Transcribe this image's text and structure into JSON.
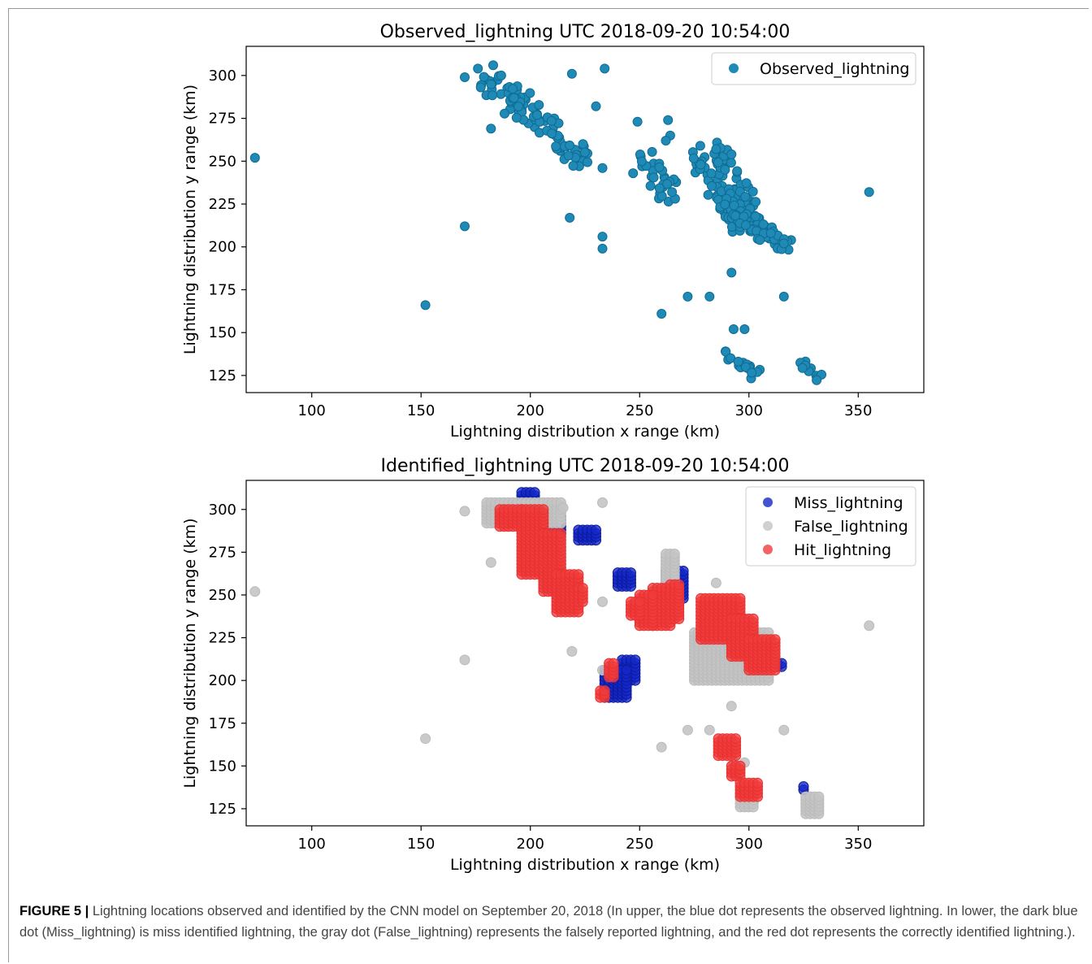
{
  "chart_data": [
    {
      "type": "scatter",
      "title": "Observed_lightning UTC 2018-09-20 10:54:00",
      "xlabel": "Lightning distribution x range (km)",
      "ylabel": "Lightning distribution y range (km)",
      "xlim": [
        70,
        380
      ],
      "ylim": [
        115,
        317
      ],
      "xticks": [
        100,
        150,
        200,
        250,
        300,
        350
      ],
      "yticks": [
        125,
        150,
        175,
        200,
        225,
        250,
        275,
        300
      ],
      "legend": "top-right",
      "series": [
        {
          "name": "Observed_lightning",
          "color": "#1f8ab5",
          "clusters": [
            {
              "x0": 180,
              "y0": 300,
              "x1": 225,
              "y1": 248,
              "w": 6,
              "n": 90
            },
            {
              "x0": 250,
              "y0": 255,
              "x1": 265,
              "y1": 230,
              "w": 5,
              "n": 30
            },
            {
              "x0": 280,
              "y0": 255,
              "x1": 300,
              "y1": 215,
              "w": 8,
              "n": 120
            },
            {
              "x0": 295,
              "y0": 218,
              "x1": 318,
              "y1": 200,
              "w": 4,
              "n": 50
            },
            {
              "x0": 292,
              "y0": 138,
              "x1": 303,
              "y1": 126,
              "w": 3,
              "n": 18
            },
            {
              "x0": 324,
              "y0": 133,
              "x1": 333,
              "y1": 122,
              "w": 2,
              "n": 12
            }
          ],
          "points": [
            [
              74,
              252
            ],
            [
              152,
              166
            ],
            [
              170,
              212
            ],
            [
              170,
              299
            ],
            [
              176,
              304
            ],
            [
              183,
              306
            ],
            [
              182,
              269
            ],
            [
              219,
              301
            ],
            [
              234,
              304
            ],
            [
              218,
              217
            ],
            [
              233,
              206
            ],
            [
              233,
              199
            ],
            [
              233,
              246
            ],
            [
              230,
              282
            ],
            [
              249,
              273
            ],
            [
              247,
              243
            ],
            [
              260,
              161
            ],
            [
              263,
              274
            ],
            [
              264,
              265
            ],
            [
              272,
              171
            ],
            [
              282,
              171
            ],
            [
              292,
              185
            ],
            [
              293,
              152
            ],
            [
              298,
              152
            ],
            [
              316,
              171
            ],
            [
              355,
              232
            ],
            [
              310,
              208
            ],
            [
              305,
              204
            ],
            [
              316,
              202
            ],
            [
              262,
              262
            ],
            [
              285,
              257
            ],
            [
              292,
              254
            ]
          ]
        }
      ]
    },
    {
      "type": "scatter",
      "title": "Identified_lightning UTC 2018-09-20 10:54:00",
      "xlabel": "Lightning distribution x range (km)",
      "ylabel": "Lightning distribution y range (km)",
      "xlim": [
        70,
        380
      ],
      "ylim": [
        115,
        317
      ],
      "xticks": [
        100,
        150,
        200,
        250,
        300,
        350
      ],
      "yticks": [
        125,
        150,
        175,
        200,
        225,
        250,
        275,
        300
      ],
      "legend": "top-right",
      "series": [
        {
          "name": "Miss_lightning",
          "color": "#1428c8",
          "grid_blocks": [
            [
              196,
              202,
              302,
              310
            ],
            [
              206,
              214,
              286,
              296
            ],
            [
              222,
              230,
              282,
              288
            ],
            [
              240,
              246,
              255,
              263
            ],
            [
              262,
              270,
              248,
              264
            ],
            [
              242,
              248,
              200,
              212
            ],
            [
              234,
              244,
              190,
              206
            ],
            [
              325,
              325,
              136,
              138
            ],
            [
              313,
              316,
              208,
              210
            ]
          ]
        },
        {
          "name": "False_lightning",
          "color": "#c4c4c4",
          "grid_blocks": [
            [
              180,
              215,
              292,
              305
            ],
            [
              275,
              310,
              200,
              228
            ],
            [
              326,
              332,
              122,
              132
            ],
            [
              296,
              302,
              126,
              132
            ],
            [
              262,
              266,
              236,
              274
            ]
          ],
          "points": [
            [
              74,
              252
            ],
            [
              152,
              166
            ],
            [
              170,
              212
            ],
            [
              170,
              299
            ],
            [
              219,
              217
            ],
            [
              233,
              206
            ],
            [
              233,
              246
            ],
            [
              233,
              304
            ],
            [
              260,
              161
            ],
            [
              272,
              171
            ],
            [
              282,
              171
            ],
            [
              292,
              185
            ],
            [
              316,
              171
            ],
            [
              355,
              232
            ],
            [
              285,
              257
            ],
            [
              293,
              152
            ],
            [
              298,
              152
            ],
            [
              182,
              269
            ],
            [
              215,
              301
            ]
          ]
        },
        {
          "name": "Hit_lightning",
          "color": "#f03c3c",
          "grid_blocks": [
            [
              186,
              196,
              290,
              300
            ],
            [
              196,
              206,
              262,
              300
            ],
            [
              206,
              214,
              252,
              286
            ],
            [
              212,
              222,
              240,
              262
            ],
            [
              222,
              224,
              246,
              254
            ],
            [
              256,
              264,
              232,
              254
            ],
            [
              250,
              256,
              232,
              250
            ],
            [
              246,
              250,
              238,
              246
            ],
            [
              264,
              268,
              236,
              256
            ],
            [
              278,
              296,
              224,
              248
            ],
            [
              292,
              302,
              214,
              236
            ],
            [
              300,
              312,
              206,
              224
            ],
            [
              236,
              238,
              202,
              210
            ],
            [
              232,
              234,
              190,
              194
            ],
            [
              286,
              294,
              156,
              166
            ],
            [
              292,
              296,
              144,
              150
            ],
            [
              296,
              304,
              132,
              140
            ]
          ]
        }
      ]
    }
  ],
  "caption": {
    "label": "FIGURE 5 |",
    "text": " Lightning locations observed and identified by the CNN model on September 20, 2018 (In upper, the blue dot represents the observed lightning. In lower, the dark blue dot (Miss_lightning) is miss identified lightning, the gray dot (False_lightning) represents the falsely reported lightning, and the red dot represents the correctly identified lightning.)."
  }
}
